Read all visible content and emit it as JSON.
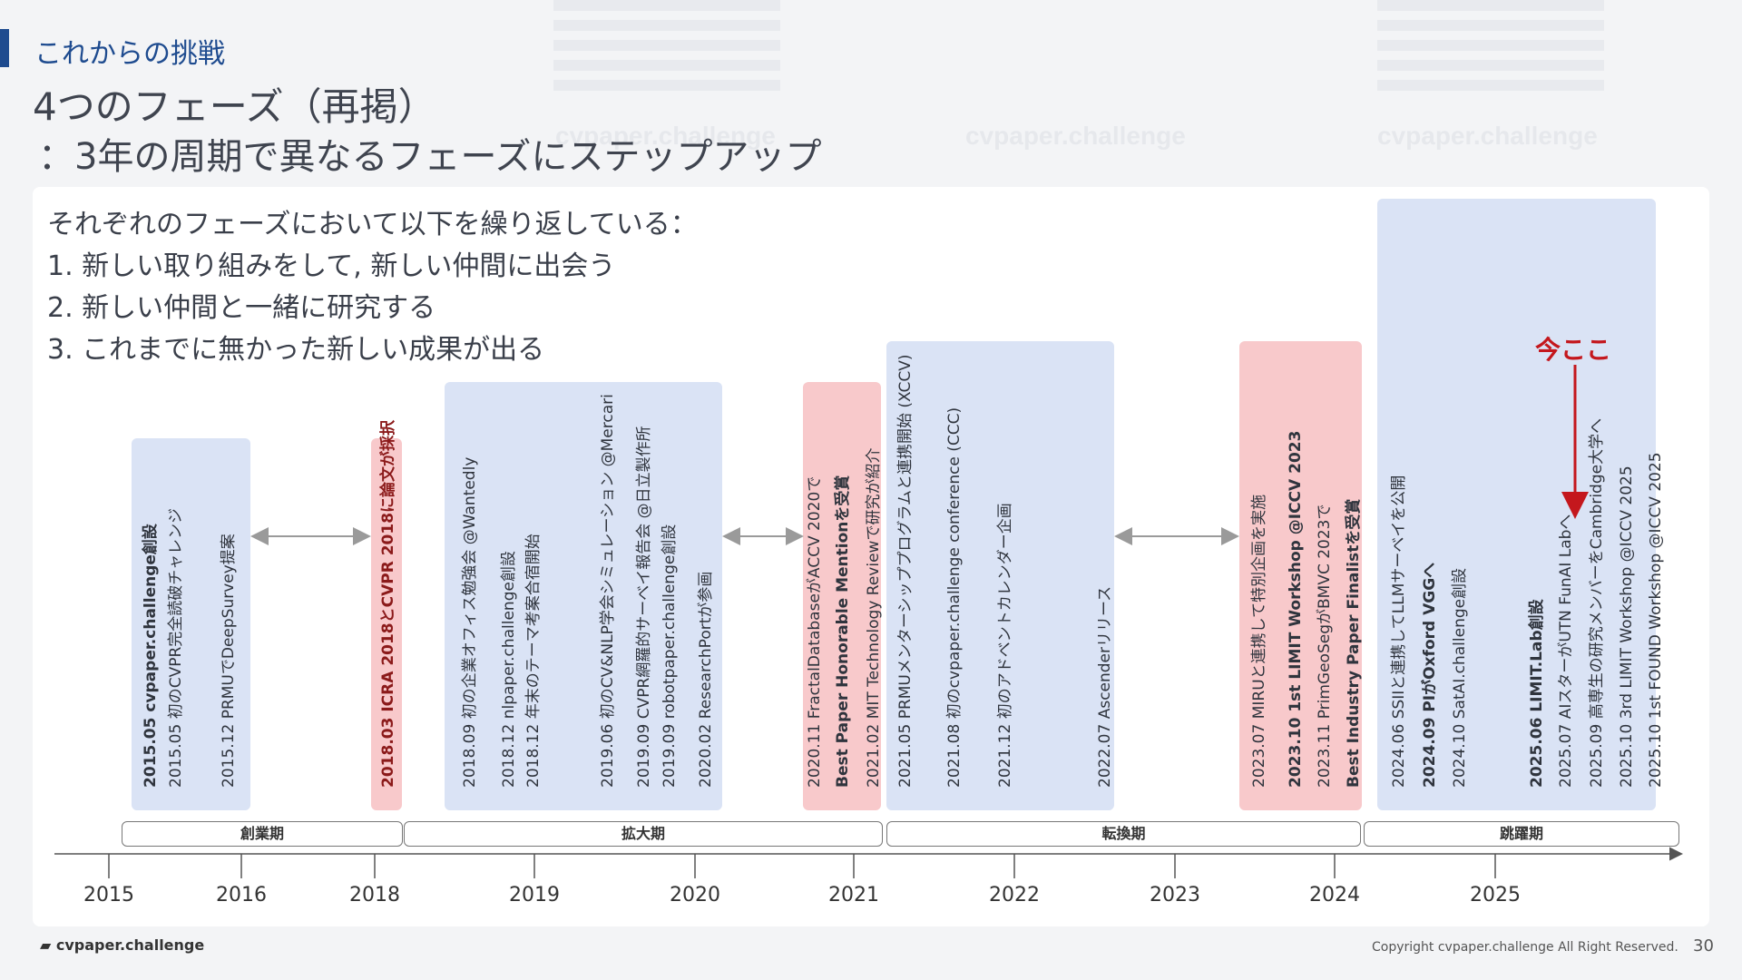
{
  "header": {
    "section": "これからの挑戦",
    "title_line1": "4つのフェーズ（再掲）",
    "title_line2": "：3年の周期で異なるフェーズにステップアップ"
  },
  "intro": {
    "lead": "それぞれのフェーズにおいて以下を繰り返している：",
    "items": [
      "1.   新しい取り組みをして, 新しい仲間に出会う",
      "2.   新しい仲間と一緒に研究する",
      "3.   これまでに無かった新しい成果が出る"
    ]
  },
  "watermark": "cvpaper.challenge",
  "events": [
    {
      "date": "2015.05",
      "text": "cvpaper.challenge創設",
      "bold": true
    },
    {
      "date": "2015.05",
      "text": "初のCVPR完全読破チャレンジ"
    },
    {
      "date": "2015.12",
      "text": "PRMUでDeepSurvey提案"
    },
    {
      "date": "2018.03",
      "text": "ICRA 2018とCVPR 2018に論文が採択",
      "highlight": true
    },
    {
      "date": "2018.09",
      "text": "初の企業オフィス勉強会 @Wantedly"
    },
    {
      "date": "2018.12",
      "text": "nlpaper.challenge創設"
    },
    {
      "date": "2018.12",
      "text": "年末のテーマ考案合宿開始"
    },
    {
      "date": "2019.06",
      "text": "初のCV&NLP学会シミュレーション @Mercari"
    },
    {
      "date": "2019.09",
      "text": "CVPR網羅的サーベイ報告会 @日立製作所"
    },
    {
      "date": "2019.09",
      "text": "robotpaper.challenge創設"
    },
    {
      "date": "2020.02",
      "text": "ResearchPortが参画"
    },
    {
      "date": "2020.11",
      "text": "FractalDatabaseがACCV 2020で"
    },
    {
      "date": "",
      "text": "Best Paper Honorable Mentionを受賞",
      "bold": true
    },
    {
      "date": "2021.02",
      "text": "MIT Technology Reviewで研究が紹介"
    },
    {
      "date": "2021.05",
      "text": "PRMUメンターシッププログラムと連携開始 (XCCV)"
    },
    {
      "date": "2021.08",
      "text": "初のcvpaper.challenge conference (CCC)"
    },
    {
      "date": "2021.12",
      "text": "初のアドベントカレンダー企画"
    },
    {
      "date": "2022.07",
      "text": "Ascenderリリース"
    },
    {
      "date": "2023.07",
      "text": "MIRUと連携して特別企画を実施"
    },
    {
      "date": "2023.10",
      "text": "1st LIMIT Workshop @ICCV 2023",
      "bold": true
    },
    {
      "date": "2023.11",
      "text": "PrimGeoSegがBMVC 2023で"
    },
    {
      "date": "",
      "text": "Best Industry Paper Finalistを受賞",
      "bold": true
    },
    {
      "date": "2024.06",
      "text": "SSIIと連携してLLMサーベイを公開"
    },
    {
      "date": "2024.09",
      "text": "PIがOxford VGGへ",
      "bold": true
    },
    {
      "date": "2024.10",
      "text": "SatAI.challenge創設"
    },
    {
      "date": "2025.06",
      "text": "LIMIT.Lab創設",
      "bold": true
    },
    {
      "date": "2025.07",
      "text": "AIスターがUTN FunAI Labへ"
    },
    {
      "date": "2025.09",
      "text": "高専生の研究メンバーをCambridge大学へ"
    },
    {
      "date": "2025.10",
      "text": "3rd LIMIT Workshop @ICCV 2025"
    },
    {
      "date": "2025.10",
      "text": "1st FOUND Workshop @ICCV 2025"
    }
  ],
  "phases": [
    "創業期",
    "拡大期",
    "転換期",
    "跳躍期"
  ],
  "years": [
    "2015",
    "2016",
    "2018",
    "2019",
    "2020",
    "2021",
    "2022",
    "2023",
    "2024",
    "2025"
  ],
  "now_label": "今ここ",
  "footer": {
    "logo": "cvpaper.challenge",
    "copyright": "Copyright cvpaper.challenge All Right Reserved.",
    "page": "30"
  },
  "colors": {
    "accent": "#1e4b8f",
    "blue_box": "#dae3f5",
    "red_box": "#f8c9cb",
    "now": "#c4171d"
  }
}
